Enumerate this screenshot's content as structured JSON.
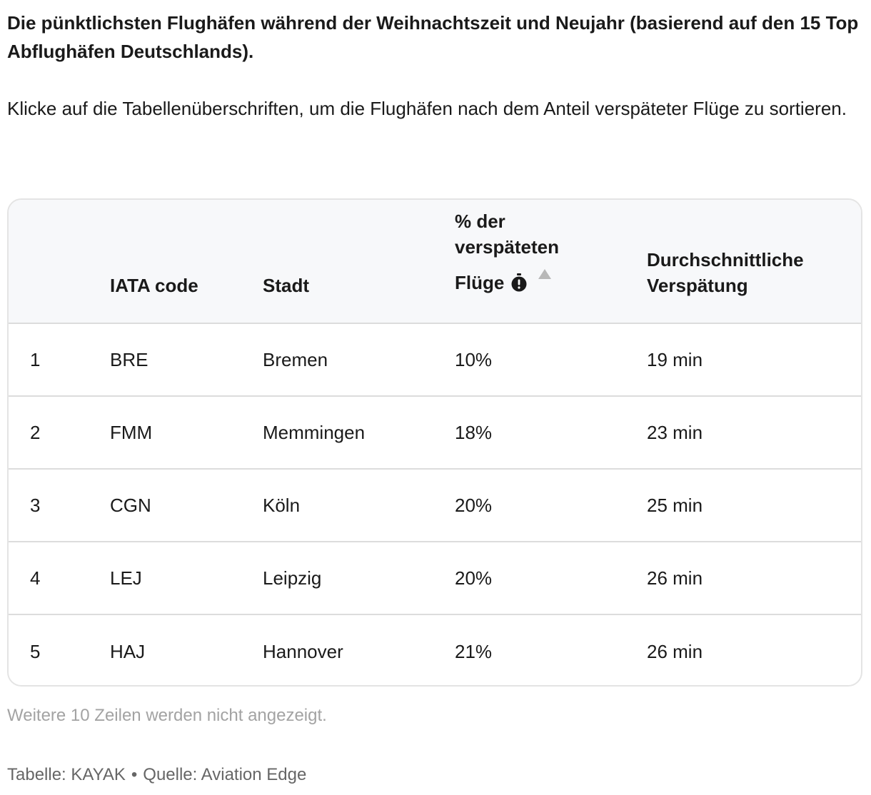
{
  "title": "Die pünktlichsten Flughäfen während der Weihnachtszeit und Neujahr (basierend auf den 15 Top Abflughäfen Deutschlands).",
  "intro": "Klicke auf die Tabellenüberschriften, um die Flughäfen nach dem Anteil verspäteter Flüge zu sortieren.",
  "table": {
    "headers": {
      "rank": "",
      "iata": "IATA code",
      "city": "Stadt",
      "late_line1": "% der",
      "late_line2": "verspäteten",
      "late_line3": "Flüge",
      "avg_line1": "Durchschnittliche",
      "avg_line2": "Verspätung"
    },
    "sort": {
      "column": "% der verspäteten Flüge",
      "direction": "ascending"
    },
    "rows": [
      {
        "rank": "1",
        "iata": "BRE",
        "city": "Bremen",
        "late_pct": "10%",
        "avg_delay": "19 min"
      },
      {
        "rank": "2",
        "iata": "FMM",
        "city": "Memmingen",
        "late_pct": "18%",
        "avg_delay": "23 min"
      },
      {
        "rank": "3",
        "iata": "CGN",
        "city": "Köln",
        "late_pct": "20%",
        "avg_delay": "25 min"
      },
      {
        "rank": "4",
        "iata": "LEJ",
        "city": "Leipzig",
        "late_pct": "20%",
        "avg_delay": "26 min"
      },
      {
        "rank": "5",
        "iata": "HAJ",
        "city": "Hannover",
        "late_pct": "21%",
        "avg_delay": "26 min"
      }
    ]
  },
  "footer": {
    "more_rows_note": "Weitere 10 Zeilen werden nicht angezeigt.",
    "table_credit": "Tabelle: KAYAK",
    "separator": "•",
    "source_credit": "Quelle: Aviation Edge"
  },
  "icons": {
    "info": "info-icon",
    "sort": "sort-ascending-icon"
  },
  "colors": {
    "text": "#1a1a1a",
    "header_bg": "#f7f8fa",
    "border": "#dcdcdc",
    "muted": "#a3a3a3",
    "credit": "#666666"
  }
}
